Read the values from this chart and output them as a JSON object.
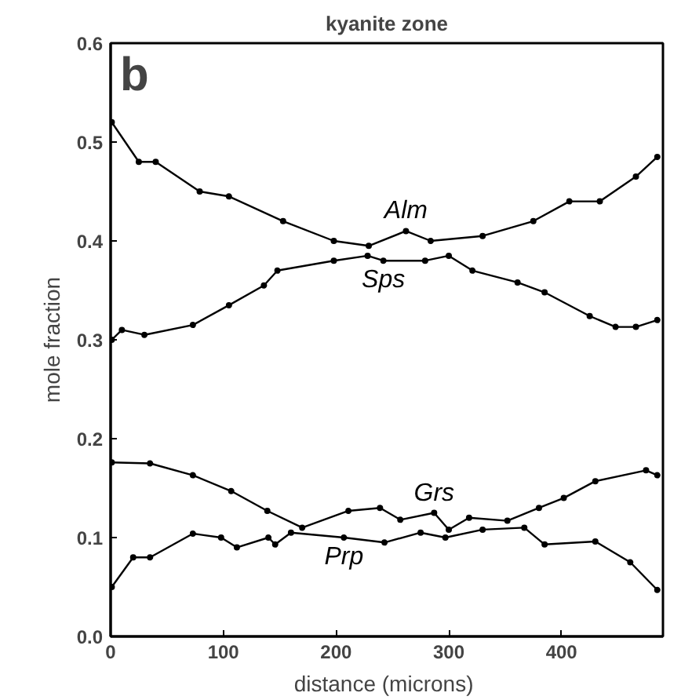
{
  "chart_data": {
    "type": "line",
    "title": "kyanite zone",
    "xlabel": "distance  (microns)",
    "ylabel": "mole fraction",
    "annotations": [
      "b"
    ],
    "xlim": [
      0,
      490
    ],
    "ylim": [
      0,
      0.6
    ],
    "xticks": [
      0,
      100,
      200,
      300,
      400
    ],
    "yticks": [
      {
        "value": 0,
        "label": "0.0"
      },
      0.1,
      0.2,
      0.3,
      0.4,
      0.5,
      0.6
    ],
    "grid": false,
    "marker": "circle",
    "line_style": "solid",
    "series": [
      {
        "name": "Alm",
        "color": "#000000",
        "x": [
          1,
          25,
          40,
          79,
          105,
          153,
          198,
          229,
          262,
          284,
          330,
          375,
          407,
          434,
          466,
          485
        ],
        "values": [
          0.52,
          0.48,
          0.48,
          0.45,
          0.445,
          0.42,
          0.4,
          0.395,
          0.41,
          0.4,
          0.405,
          0.42,
          0.44,
          0.44,
          0.465,
          0.485
        ]
      },
      {
        "name": "Sps",
        "color": "#000000",
        "x": [
          1,
          10,
          30,
          73,
          105,
          136,
          148,
          198,
          228,
          242,
          279,
          300,
          321,
          361,
          385,
          425,
          448,
          466,
          485
        ],
        "values": [
          0.3,
          0.31,
          0.305,
          0.315,
          0.335,
          0.355,
          0.37,
          0.38,
          0.385,
          0.38,
          0.38,
          0.385,
          0.37,
          0.358,
          0.348,
          0.324,
          0.313,
          0.313,
          0.32
        ]
      },
      {
        "name": "Grs",
        "color": "#000000",
        "x": [
          1,
          35,
          73,
          107,
          139,
          170,
          211,
          239,
          257,
          287,
          300,
          318,
          352,
          380,
          402,
          430,
          475,
          485
        ],
        "values": [
          0.176,
          0.175,
          0.163,
          0.147,
          0.127,
          0.11,
          0.127,
          0.13,
          0.118,
          0.125,
          0.108,
          0.12,
          0.117,
          0.13,
          0.14,
          0.157,
          0.168,
          0.163
        ]
      },
      {
        "name": "Prp",
        "color": "#000000",
        "x": [
          1,
          20,
          35,
          73,
          98,
          112,
          140,
          146,
          160,
          207,
          243,
          275,
          297,
          330,
          367,
          385,
          430,
          461,
          485
        ],
        "values": [
          0.05,
          0.08,
          0.08,
          0.104,
          0.1,
          0.09,
          0.1,
          0.093,
          0.105,
          0.1,
          0.095,
          0.105,
          0.1,
          0.108,
          0.11,
          0.093,
          0.096,
          0.075,
          0.047
        ]
      }
    ]
  }
}
